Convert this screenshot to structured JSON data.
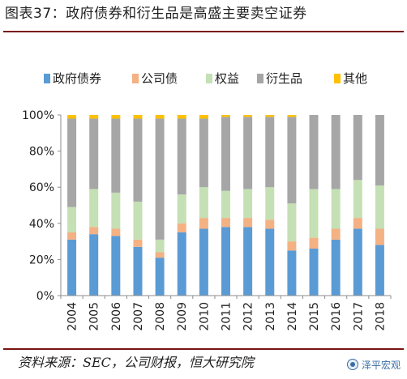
{
  "header": {
    "title": "图表37：政府债券和衍生品是高盛主要卖空证券"
  },
  "footer": {
    "source": "资料来源：SEC，公司财报，恒大研究院",
    "watermark": "泽平宏观"
  },
  "colors": {
    "rule": "#7a1414",
    "gov_bonds": "#5b9bd5",
    "corp_debt": "#f4b183",
    "equity": "#c5e0b4",
    "derivatives": "#a6a6a6",
    "other": "#ffc000"
  },
  "chart_data": {
    "type": "bar",
    "stacked": true,
    "percent": true,
    "title": "",
    "xlabel": "",
    "ylabel": "",
    "ylim": [
      0,
      100
    ],
    "yticks": [
      "0%",
      "20%",
      "40%",
      "60%",
      "80%",
      "100%"
    ],
    "legend_position": "top",
    "grid": false,
    "categories": [
      "2004",
      "2005",
      "2006",
      "2007",
      "2008",
      "2009",
      "2010",
      "2011",
      "2012",
      "2013",
      "2014",
      "2015",
      "2016",
      "2017",
      "2018"
    ],
    "series": [
      {
        "name": "政府债券",
        "color": "#5b9bd5",
        "values": [
          31,
          34,
          33,
          27,
          21,
          35,
          37,
          38,
          38,
          37,
          25,
          26,
          31,
          37,
          28
        ]
      },
      {
        "name": "公司债",
        "color": "#f4b183",
        "values": [
          4,
          4,
          4,
          4,
          3,
          5,
          6,
          5,
          5,
          5,
          5,
          6,
          6,
          6,
          9
        ]
      },
      {
        "name": "权益",
        "color": "#c5e0b4",
        "values": [
          14,
          21,
          20,
          21,
          7,
          16,
          17,
          15,
          16,
          18,
          21,
          27,
          22,
          21,
          24
        ]
      },
      {
        "name": "衍生品",
        "color": "#a6a6a6",
        "values": [
          49,
          39,
          41,
          46,
          67,
          42,
          38,
          41,
          40,
          39,
          48,
          41,
          41,
          36,
          39
        ]
      },
      {
        "name": "其他",
        "color": "#ffc000",
        "values": [
          2,
          2,
          2,
          2,
          2,
          2,
          2,
          1,
          1,
          1,
          1,
          0,
          0,
          0,
          0
        ]
      }
    ]
  }
}
